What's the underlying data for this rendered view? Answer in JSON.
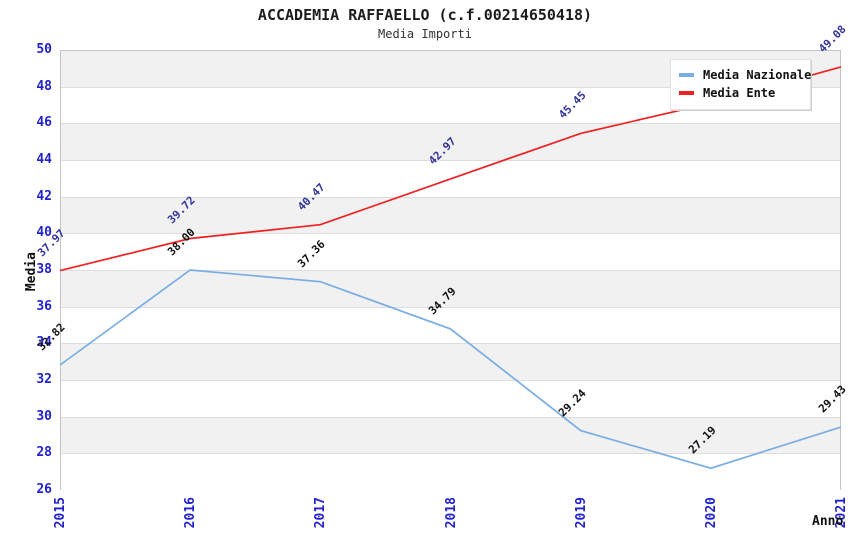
{
  "title": "ACCADEMIA RAFFAELLO (c.f.00214650418)",
  "subtitle": "Media Importi",
  "colors": {
    "axis_tick_text": "#2222cc",
    "band_fill": "#f1f1f1",
    "gridline": "#dedede",
    "plot_border": "#c6c6c6",
    "national_series": "#79ade4",
    "entity_series": "#ee2222",
    "national_point_label_text": "#111111",
    "entity_point_label_text": "#333399"
  },
  "chart_data": {
    "type": "line",
    "x": [
      "2015",
      "2016",
      "2017",
      "2018",
      "2019",
      "2020",
      "2021"
    ],
    "xlabel": "Anno",
    "ylabel": "Media",
    "ylim": [
      26,
      50
    ],
    "ytick_step": 2,
    "yticks": [
      "26",
      "28",
      "30",
      "32",
      "34",
      "36",
      "38",
      "40",
      "42",
      "44",
      "46",
      "48",
      "50"
    ],
    "grid": "horizontal-alternating-bands",
    "legend_position": "top-right-inside",
    "series": [
      {
        "name": "Media Nazionale",
        "color": "#79ade4",
        "label_color": "#111111",
        "values": [
          32.82,
          38.0,
          37.36,
          34.79,
          29.24,
          27.19,
          29.43
        ],
        "point_labels": [
          "32.82",
          "38.00",
          "37.36",
          "34.79",
          "29.24",
          "27.19",
          "29.43"
        ]
      },
      {
        "name": "Media Ente",
        "color": "#ee2222",
        "label_color": "#333399",
        "values": [
          37.97,
          39.72,
          40.47,
          42.97,
          45.45,
          47.1,
          49.08
        ],
        "point_labels": [
          "37.97",
          "39.72",
          "40.47",
          "42.97",
          "45.45",
          null,
          "49.08"
        ]
      }
    ]
  }
}
